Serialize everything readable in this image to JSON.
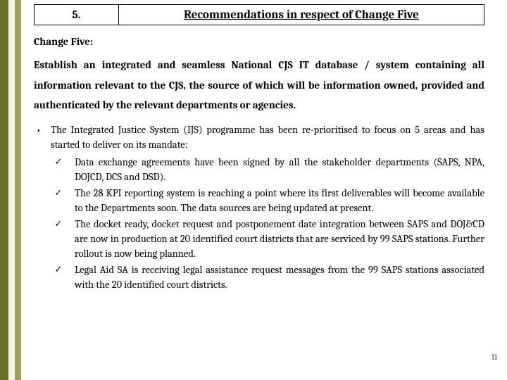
{
  "stripes": {
    "color_a": "#6b6b2a",
    "color_b": "#f4f4ec",
    "color_c": "#9e9e5a"
  },
  "title": {
    "number": "5.",
    "text": "Recommendations in respect of Change Five"
  },
  "subheading": "Change  Five:",
  "intro": "Establish an integrated and seamless National CJS IT database / system containing all information relevant to the CJS, the source of which will be information owned, provided and authenticated by the relevant departments or agencies.",
  "bullet_glyph": "•",
  "lead": "The Integrated Justice System (IJS) programme has been re-prioritised to focus on 5 areas and has started to deliver on its mandate:",
  "check_glyph": "✓",
  "checks": [
    "Data exchange agreements have been signed by all the stakeholder departments (SAPS, NPA, DOJCD, DCS and DSD).",
    "The 28 KPI reporting system is reaching a point where its first deliverables will become available to the Departments soon. The data sources are being updated at present.",
    "The docket ready, docket request and postponement date integration between SAPS and DOJ&CD are now in production at 20 identified court districts that are serviced by 99 SAPS stations. Further rollout is now being planned.",
    "Legal Aid SA is receiving legal assistance request messages from the 99 SAPS stations associated with the 20 identified court districts."
  ],
  "page_number": "11"
}
